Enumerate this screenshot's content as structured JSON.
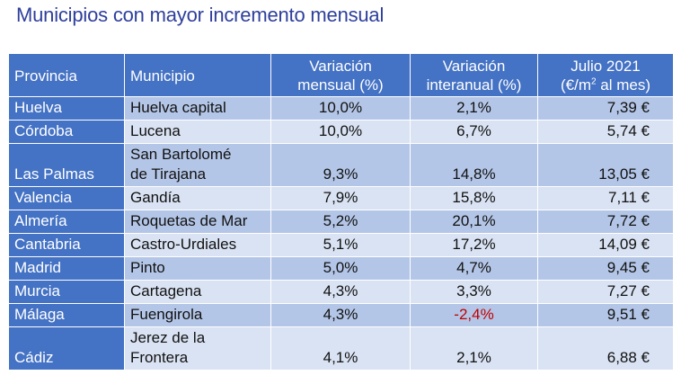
{
  "title": "Municipios con mayor incremento mensual",
  "headers": {
    "provincia": "Provincia",
    "municipio": "Municipio",
    "var_mensual_1": "Variación",
    "var_mensual_2": "mensual (%)",
    "var_interanual_1": "Variación",
    "var_interanual_2": "interanual (%)",
    "julio_1": "Julio 2021",
    "julio_2a": "(€/m",
    "julio_sup": "2",
    "julio_2b": " al mes)"
  },
  "rows": [
    {
      "provincia": "Huelva",
      "municipio_1": "Huelva capital",
      "municipio_2": "",
      "mensual": "10,0%",
      "interanual": "2,1%",
      "julio": "7,39 €"
    },
    {
      "provincia": "Córdoba",
      "municipio_1": "Lucena",
      "municipio_2": "",
      "mensual": "10,0%",
      "interanual": "6,7%",
      "julio": "5,74 €"
    },
    {
      "provincia": "Las Palmas",
      "municipio_1": "San Bartolomé",
      "municipio_2": "de Tirajana",
      "mensual": "9,3%",
      "interanual": "14,8%",
      "julio": "13,05 €"
    },
    {
      "provincia": "Valencia",
      "municipio_1": "Gandía",
      "municipio_2": "",
      "mensual": "7,9%",
      "interanual": "15,8%",
      "julio": "7,11 €"
    },
    {
      "provincia": "Almería",
      "municipio_1": "Roquetas de Mar",
      "municipio_2": "",
      "mensual": "5,2%",
      "interanual": "20,1%",
      "julio": "7,72 €"
    },
    {
      "provincia": "Cantabria",
      "municipio_1": "Castro-Urdiales",
      "municipio_2": "",
      "mensual": "5,1%",
      "interanual": "17,2%",
      "julio": "14,09 €"
    },
    {
      "provincia": "Madrid",
      "municipio_1": "Pinto",
      "municipio_2": "",
      "mensual": "5,0%",
      "interanual": "4,7%",
      "julio": "9,45 €"
    },
    {
      "provincia": "Murcia",
      "municipio_1": "Cartagena",
      "municipio_2": "",
      "mensual": "4,3%",
      "interanual": "3,3%",
      "julio": "7,27 €"
    },
    {
      "provincia": "Málaga",
      "municipio_1": "Fuengirola",
      "municipio_2": "",
      "mensual": "4,3%",
      "interanual": "-2,4%",
      "julio": "9,51 €"
    },
    {
      "provincia": "Cádiz",
      "municipio_1": "Jerez de la",
      "municipio_2": "Frontera",
      "mensual": "4,1%",
      "interanual": "2,1%",
      "julio": "6,88 €"
    }
  ],
  "colors": {
    "title": "#2e3f9c",
    "header_bg": "#4472c4",
    "row_dark": "#b4c6e7",
    "row_light": "#dae3f3",
    "negative": "#c00000"
  }
}
